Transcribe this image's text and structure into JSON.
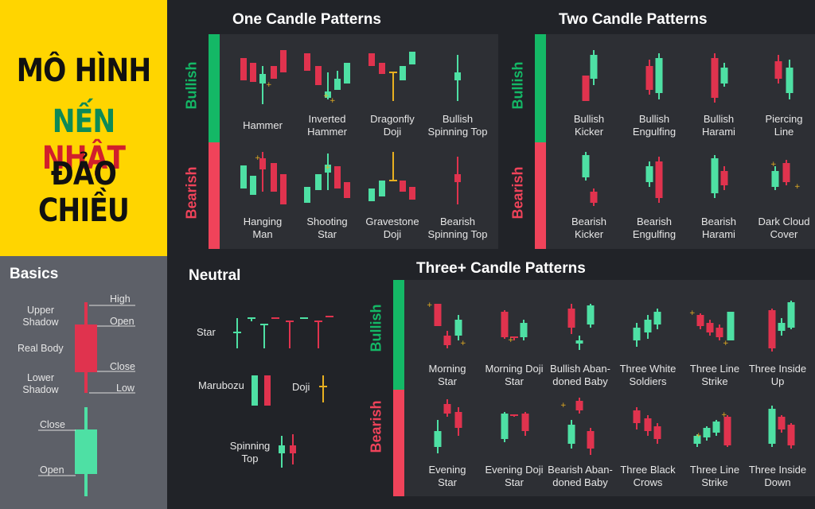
{
  "title": {
    "line1": "MÔ HÌNH",
    "line2a": "NẾN",
    "line2b": "NHẬT",
    "line3": "ĐẢO CHIỀU"
  },
  "colors": {
    "bull": "#4ee0a4",
    "bear": "#e0334e",
    "doji": "#e8b020",
    "accent_bull": "#14b866",
    "accent_bear": "#f0435a",
    "title_green": "#0d8a57",
    "title_red": "#d11f2c"
  },
  "basics": {
    "title": "Basics",
    "upper_shadow": "Upper\nShadow",
    "real_body": "Real Body",
    "lower_shadow": "Lower\nShadow",
    "high": "High",
    "open": "Open",
    "close": "Close",
    "low": "Low",
    "close2": "Close",
    "open2": "Open"
  },
  "one": {
    "title": "One Candle Patterns",
    "bullish": "Bullish",
    "bearish": "Bearish",
    "bull_caps": [
      "Hammer",
      "Inverted\nHammer",
      "Dragonfly\nDoji",
      "Bullish\nSpinning Top"
    ],
    "bear_caps": [
      "Hanging\nMan",
      "Shooting\nStar",
      "Gravestone\nDoji",
      "Bearish\nSpinning Top"
    ]
  },
  "two": {
    "title": "Two Candle Patterns",
    "bullish": "Bullish",
    "bearish": "Bearish",
    "bull_caps": [
      "Bullish\nKicker",
      "Bullish\nEngulfing",
      "Bullish\nHarami",
      "Piercing\nLine"
    ],
    "bear_caps": [
      "Bearish\nKicker",
      "Bearish\nEngulfing",
      "Bearish\nHarami",
      "Dark Cloud\nCover"
    ]
  },
  "neutral": {
    "title": "Neutral",
    "star": "Star",
    "marubozu": "Marubozu",
    "doji": "Doji",
    "spinning": "Spinning\nTop"
  },
  "three": {
    "title": "Three+ Candle Patterns",
    "bullish": "Bullish",
    "bearish": "Bearish",
    "bull_caps": [
      "Morning\nStar",
      "Morning Doji\nStar",
      "Bullish Aban-\ndoned Baby",
      "Three White\nSoldiers",
      "Three Line\nStrike",
      "Three Inside\nUp"
    ],
    "bear_caps": [
      "Evening\nStar",
      "Evening Doji\nStar",
      "Bearish Aban-\ndoned Baby",
      "Three Black\nCrows",
      "Three Line\nStrike",
      "Three Inside\nDown"
    ]
  }
}
